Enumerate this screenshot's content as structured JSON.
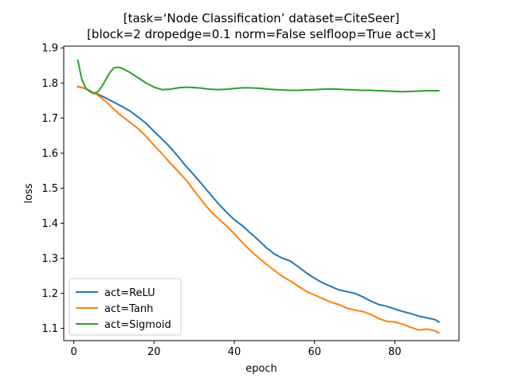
{
  "chart_data": {
    "type": "line",
    "title_line1": "[task=‘Node Classification’ dataset=CiteSeer]",
    "title_line2": "[block=2 dropedge=0.1 norm=False selfloop=True act=x]",
    "xlabel": "epoch",
    "ylabel": "loss",
    "xlim": [
      -2.5,
      96
    ],
    "ylim": [
      1.065,
      1.905
    ],
    "xticks": [
      0,
      20,
      40,
      60,
      80
    ],
    "yticks": [
      1.1,
      1.2,
      1.3,
      1.4,
      1.5,
      1.6,
      1.7,
      1.8,
      1.9
    ],
    "grid": false,
    "legend_position": "lower-left",
    "series": [
      {
        "name": "act=ReLU",
        "color": "#1f77b4",
        "x": [
          1,
          2,
          3,
          4,
          5,
          6,
          8,
          10,
          12,
          14,
          16,
          18,
          20,
          22,
          24,
          26,
          28,
          30,
          32,
          34,
          36,
          38,
          40,
          42,
          44,
          46,
          48,
          50,
          52,
          54,
          56,
          58,
          60,
          62,
          64,
          66,
          68,
          70,
          72,
          74,
          76,
          78,
          80,
          82,
          84,
          86,
          88,
          90,
          91
        ],
        "y": [
          1.789,
          1.787,
          1.783,
          1.778,
          1.772,
          1.768,
          1.757,
          1.745,
          1.733,
          1.72,
          1.703,
          1.685,
          1.662,
          1.64,
          1.617,
          1.59,
          1.562,
          1.537,
          1.51,
          1.483,
          1.456,
          1.432,
          1.41,
          1.393,
          1.372,
          1.352,
          1.33,
          1.312,
          1.3,
          1.292,
          1.275,
          1.258,
          1.243,
          1.23,
          1.22,
          1.21,
          1.205,
          1.2,
          1.19,
          1.178,
          1.168,
          1.163,
          1.155,
          1.148,
          1.142,
          1.135,
          1.13,
          1.125,
          1.118
        ]
      },
      {
        "name": "act=Tanh",
        "color": "#ff7f0e",
        "x": [
          1,
          2,
          3,
          4,
          5,
          6,
          8,
          10,
          12,
          14,
          16,
          18,
          20,
          22,
          24,
          26,
          28,
          30,
          32,
          34,
          36,
          38,
          40,
          42,
          44,
          46,
          48,
          50,
          52,
          54,
          56,
          58,
          60,
          62,
          64,
          66,
          68,
          70,
          72,
          74,
          76,
          78,
          80,
          82,
          84,
          86,
          88,
          90,
          91
        ],
        "y": [
          1.79,
          1.787,
          1.783,
          1.778,
          1.772,
          1.765,
          1.747,
          1.725,
          1.705,
          1.688,
          1.67,
          1.648,
          1.622,
          1.598,
          1.572,
          1.548,
          1.523,
          1.493,
          1.463,
          1.435,
          1.413,
          1.393,
          1.37,
          1.345,
          1.322,
          1.302,
          1.283,
          1.265,
          1.248,
          1.235,
          1.22,
          1.205,
          1.195,
          1.185,
          1.175,
          1.168,
          1.158,
          1.152,
          1.148,
          1.14,
          1.128,
          1.12,
          1.118,
          1.112,
          1.103,
          1.095,
          1.098,
          1.093,
          1.087
        ]
      },
      {
        "name": "act=Sigmoid",
        "color": "#2ca02c",
        "x": [
          1,
          2,
          3,
          4,
          5,
          6,
          7,
          8,
          9,
          10,
          11,
          12,
          14,
          16,
          18,
          20,
          22,
          24,
          26,
          28,
          30,
          32,
          34,
          36,
          38,
          40,
          42,
          44,
          46,
          48,
          50,
          52,
          54,
          56,
          58,
          60,
          62,
          64,
          66,
          68,
          70,
          72,
          74,
          76,
          78,
          80,
          82,
          84,
          86,
          88,
          90,
          91
        ],
        "y": [
          1.865,
          1.81,
          1.785,
          1.775,
          1.77,
          1.775,
          1.79,
          1.81,
          1.83,
          1.843,
          1.845,
          1.842,
          1.83,
          1.815,
          1.8,
          1.788,
          1.781,
          1.782,
          1.786,
          1.788,
          1.787,
          1.785,
          1.782,
          1.781,
          1.782,
          1.784,
          1.786,
          1.786,
          1.785,
          1.783,
          1.781,
          1.78,
          1.779,
          1.779,
          1.78,
          1.781,
          1.782,
          1.783,
          1.782,
          1.781,
          1.78,
          1.779,
          1.779,
          1.778,
          1.777,
          1.776,
          1.775,
          1.776,
          1.777,
          1.778,
          1.778,
          1.778
        ]
      }
    ]
  }
}
